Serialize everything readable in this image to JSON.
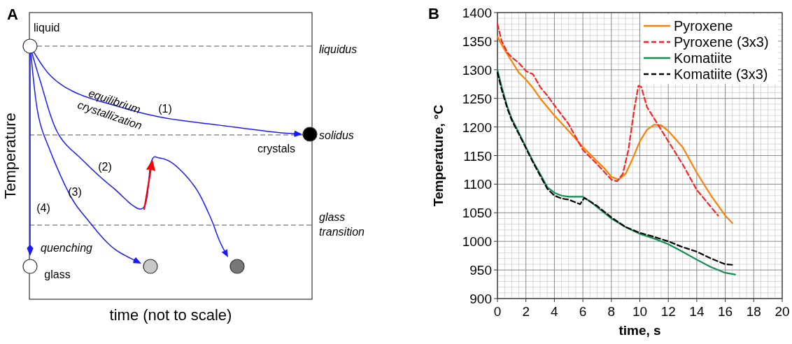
{
  "chart_data": [
    {
      "type": "other",
      "title": "A",
      "xlabel": "time (not to scale)",
      "ylabel": "Temperature",
      "annotations": [
        "liquid",
        "crystals",
        "glass",
        "quenching",
        "equilibrium crystallization",
        "(1)",
        "(2)",
        "(3)",
        "(4)",
        "liquidus",
        "solidus",
        "glass transition"
      ]
    },
    {
      "type": "line",
      "title": "B",
      "xlabel": "time, s",
      "ylabel": "Temperature, °C",
      "xlim": [
        0,
        20
      ],
      "ylim": [
        900,
        1400
      ],
      "xticks": [
        0,
        2,
        4,
        6,
        8,
        10,
        12,
        14,
        16,
        18,
        20
      ],
      "yticks": [
        900,
        950,
        1000,
        1050,
        1100,
        1150,
        1200,
        1250,
        1300,
        1350,
        1400
      ],
      "grid": true,
      "legend": "top right",
      "series": [
        {
          "name": "Pyroxene",
          "color": "#ff8000",
          "line_style": "solid",
          "x": [
            0,
            0.5,
            1,
            1.5,
            2,
            2.5,
            3,
            3.5,
            4,
            5,
            6,
            7,
            7.5,
            8,
            8.5,
            9,
            9.5,
            10,
            10.5,
            11,
            11.5,
            12,
            13,
            14,
            15,
            16,
            16.5
          ],
          "values": [
            1358,
            1335,
            1315,
            1295,
            1283,
            1268,
            1250,
            1235,
            1220,
            1193,
            1165,
            1140,
            1128,
            1113,
            1108,
            1118,
            1145,
            1175,
            1195,
            1204,
            1203,
            1193,
            1165,
            1120,
            1080,
            1045,
            1032
          ]
        },
        {
          "name": "Pyroxene (3x3)",
          "color": "#ff2020",
          "line_style": "dashed",
          "x": [
            0,
            0.3,
            0.7,
            1,
            1.5,
            2,
            2.5,
            3,
            3.5,
            4,
            5,
            6,
            7,
            8,
            8.4,
            8.8,
            9.2,
            9.6,
            9.9,
            10.1,
            10.5,
            11,
            11.5,
            12,
            13,
            14,
            15,
            15.5
          ],
          "values": [
            1380,
            1350,
            1330,
            1322,
            1312,
            1298,
            1292,
            1270,
            1255,
            1238,
            1205,
            1160,
            1135,
            1108,
            1105,
            1118,
            1160,
            1230,
            1272,
            1270,
            1235,
            1215,
            1195,
            1175,
            1135,
            1090,
            1060,
            1045
          ]
        },
        {
          "name": "Komatiite",
          "color": "#109050",
          "line_style": "solid",
          "x": [
            0,
            0.3,
            0.7,
            1,
            1.5,
            2,
            2.5,
            3,
            3.5,
            4,
            4.5,
            5,
            5.5,
            6,
            6.5,
            7,
            8,
            9,
            10,
            11,
            12,
            13,
            14,
            15,
            16,
            16.7
          ],
          "values": [
            1300,
            1270,
            1235,
            1215,
            1190,
            1165,
            1140,
            1118,
            1095,
            1085,
            1080,
            1078,
            1078,
            1078,
            1070,
            1060,
            1040,
            1025,
            1013,
            1005,
            995,
            982,
            968,
            955,
            945,
            942
          ]
        },
        {
          "name": "Komatiite (3x3)",
          "color": "#000000",
          "line_style": "dashed",
          "x": [
            0,
            0.3,
            0.7,
            1,
            1.5,
            2,
            2.5,
            3,
            3.5,
            4,
            4.5,
            5,
            5.5,
            5.8,
            6.1,
            7,
            8,
            9,
            10,
            11,
            12,
            13,
            14,
            15,
            16,
            16.5
          ],
          "values": [
            1295,
            1265,
            1232,
            1212,
            1188,
            1163,
            1138,
            1115,
            1092,
            1080,
            1075,
            1073,
            1068,
            1065,
            1076,
            1062,
            1042,
            1025,
            1015,
            1008,
            1000,
            990,
            982,
            970,
            960,
            959
          ]
        }
      ]
    }
  ]
}
